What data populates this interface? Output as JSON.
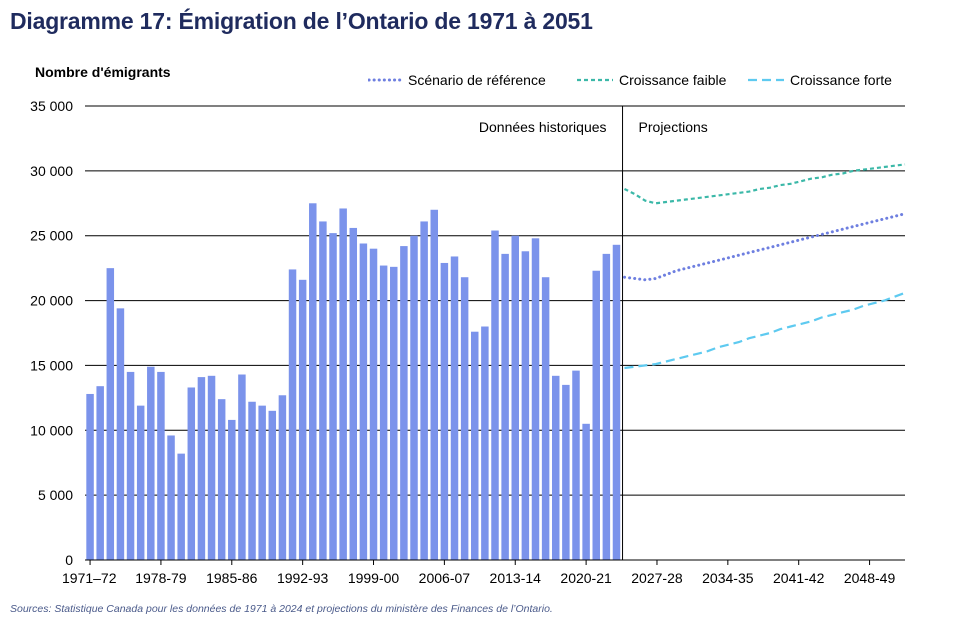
{
  "title": "Diagramme 17: Émigration de l’Ontario de 1971 à 2051",
  "source": "Sources: Statistique Canada pour les données de 1971 à 2024 et projections du ministère des Finances de l’Ontario.",
  "colors": {
    "bars": "#7b93eb",
    "reference": "#6e7fe0",
    "low": "#3bb8a8",
    "high": "#5ecaf0",
    "title": "#1f2b5e"
  },
  "chart_data": {
    "type": "bar",
    "ylabel": "Nombre d'émigrants",
    "ylim": [
      0,
      35000
    ],
    "yticks": [
      0,
      5000,
      10000,
      15000,
      20000,
      25000,
      30000,
      35000
    ],
    "ytick_labels": [
      "0",
      "5 000",
      "10 000",
      "15 000",
      "20 000",
      "25 000",
      "30 000",
      "35 000"
    ],
    "xtick_labels": [
      "1971–72",
      "1978-79",
      "1985-86",
      "1992-93",
      "1999-00",
      "2006-07",
      "2013-14",
      "2020-21",
      "2027-28",
      "2034-35",
      "2041-42",
      "2048-49"
    ],
    "section_labels": {
      "historical": "Données historiques",
      "projections": "Projections"
    },
    "historical": {
      "start_year": "1971-72",
      "values": [
        12800,
        13400,
        22500,
        19400,
        14500,
        11900,
        14900,
        14500,
        9600,
        8200,
        13300,
        14100,
        14200,
        12400,
        10800,
        14300,
        12200,
        11900,
        11500,
        12700,
        22400,
        21600,
        27500,
        26100,
        25200,
        27100,
        25600,
        24400,
        24000,
        22700,
        22600,
        24200,
        25000,
        26100,
        27000,
        22900,
        23400,
        21800,
        17600,
        18000,
        25400,
        23600,
        25000,
        23800,
        24800,
        21800,
        14200,
        13500,
        14600,
        10500,
        22300,
        23600,
        24300
      ]
    },
    "series": [
      {
        "name": "Scénario de référence",
        "style": "dotted",
        "values": [
          21800,
          21700,
          21600,
          21700,
          22000,
          22300,
          22500,
          22700,
          22900,
          23100,
          23300,
          23500,
          23700,
          23900,
          24100,
          24300,
          24500,
          24700,
          24900,
          25100,
          25300,
          25500,
          25700,
          25900,
          26100,
          26300,
          26500,
          26700
        ]
      },
      {
        "name": "Croissance faible",
        "style": "dashed",
        "values": [
          28600,
          28200,
          27700,
          27500,
          27600,
          27700,
          27800,
          27900,
          28000,
          28100,
          28200,
          28300,
          28400,
          28600,
          28700,
          28900,
          29000,
          29200,
          29400,
          29500,
          29700,
          29800,
          30000,
          30100,
          30200,
          30300,
          30400,
          30500
        ]
      },
      {
        "name": "Croissance forte",
        "style": "long-dashed",
        "values": [
          14800,
          14900,
          15000,
          15100,
          15300,
          15500,
          15700,
          15900,
          16100,
          16400,
          16600,
          16800,
          17100,
          17300,
          17500,
          17800,
          18000,
          18200,
          18400,
          18700,
          18900,
          19100,
          19300,
          19600,
          19800,
          20000,
          20300,
          20600
        ]
      }
    ]
  }
}
